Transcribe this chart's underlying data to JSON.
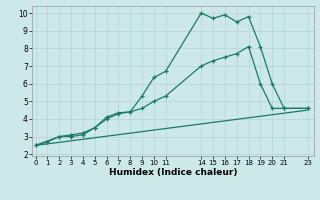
{
  "xlabel": "Humidex (Indice chaleur)",
  "bg_color": "#cce8e8",
  "grid_color": "#b8d8d8",
  "line_color": "#1a7a6a",
  "line1_x": [
    0,
    1,
    2,
    3,
    4,
    5,
    6,
    7,
    8,
    9,
    10,
    11,
    14,
    15,
    16,
    17,
    18,
    19,
    20,
    21,
    23
  ],
  "line1_y": [
    2.5,
    2.7,
    3.0,
    3.0,
    3.1,
    3.5,
    4.1,
    4.35,
    4.4,
    5.3,
    6.35,
    6.7,
    10.0,
    9.7,
    9.9,
    9.5,
    9.8,
    8.1,
    6.0,
    4.6,
    4.6
  ],
  "line2_x": [
    0,
    2,
    3,
    4,
    5,
    6,
    7,
    8,
    9,
    10,
    11,
    14,
    15,
    16,
    17,
    18,
    19,
    20,
    21,
    23
  ],
  "line2_y": [
    2.5,
    3.0,
    3.1,
    3.2,
    3.5,
    4.0,
    4.3,
    4.4,
    4.6,
    5.0,
    5.3,
    7.0,
    7.3,
    7.5,
    7.7,
    8.1,
    6.0,
    4.6,
    4.6,
    4.6
  ],
  "line3_x": [
    0,
    23
  ],
  "line3_y": [
    2.5,
    4.5
  ],
  "xticks": [
    0,
    1,
    2,
    3,
    4,
    5,
    6,
    7,
    8,
    9,
    10,
    11,
    14,
    15,
    16,
    17,
    18,
    19,
    20,
    21,
    23
  ],
  "yticks": [
    2,
    3,
    4,
    5,
    6,
    7,
    8,
    9,
    10
  ],
  "xlim": [
    -0.3,
    23.5
  ],
  "ylim": [
    1.9,
    10.4
  ]
}
